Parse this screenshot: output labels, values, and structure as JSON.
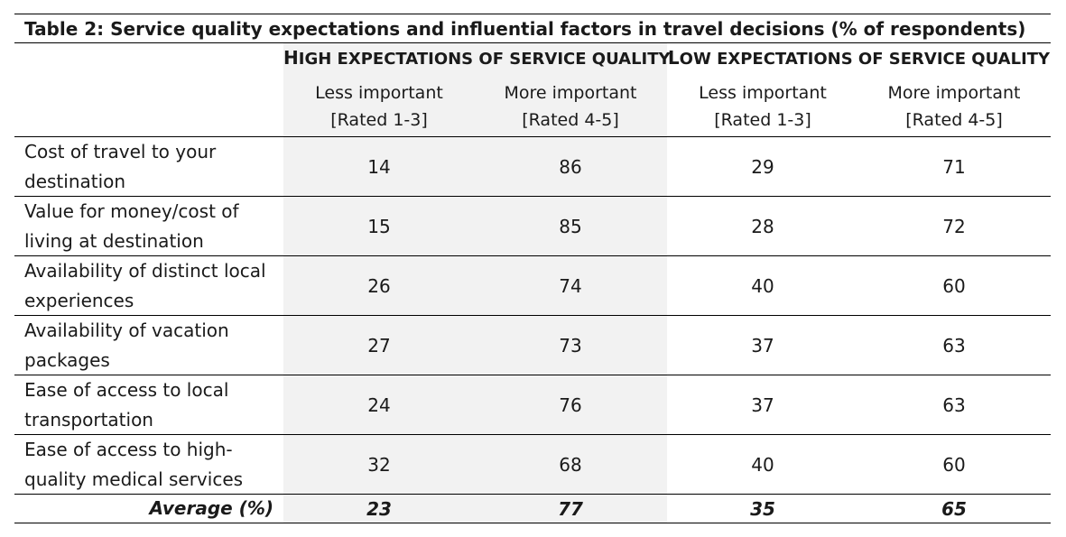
{
  "title": "Table 2: Service quality expectations and influential factors in travel decisions (% of respondents)",
  "groups": {
    "high": {
      "first": "H",
      "rest": "IGH EXPECTATIONS OF SERVICE QUALITY"
    },
    "low": {
      "first": "L",
      "rest": "OW EXPECTATIONS OF SERVICE QUALITY"
    }
  },
  "subheaders": {
    "less": {
      "line1": "Less important",
      "line2": "[Rated 1-3]"
    },
    "more": {
      "line1": "More important",
      "line2": "[Rated 4-5]"
    }
  },
  "rows": [
    {
      "label": "Cost of travel to your destination",
      "values": [
        "14",
        "86",
        "29",
        "71"
      ]
    },
    {
      "label": "Value for money/cost of living at destination",
      "values": [
        "15",
        "85",
        "28",
        "72"
      ]
    },
    {
      "label": "Availability of distinct local experiences",
      "values": [
        "26",
        "74",
        "40",
        "60"
      ]
    },
    {
      "label": "Availability of vacation packages",
      "values": [
        "27",
        "73",
        "37",
        "63"
      ]
    },
    {
      "label": "Ease of access to local transportation",
      "values": [
        "24",
        "76",
        "37",
        "63"
      ]
    },
    {
      "label": "Ease of access to high-quality medical services",
      "values": [
        "32",
        "68",
        "40",
        "60"
      ]
    }
  ],
  "average": {
    "label": "Average (%)",
    "values": [
      "23",
      "77",
      "35",
      "65"
    ]
  },
  "colors": {
    "shade": "#f2f2f2",
    "rule": "#000000"
  }
}
